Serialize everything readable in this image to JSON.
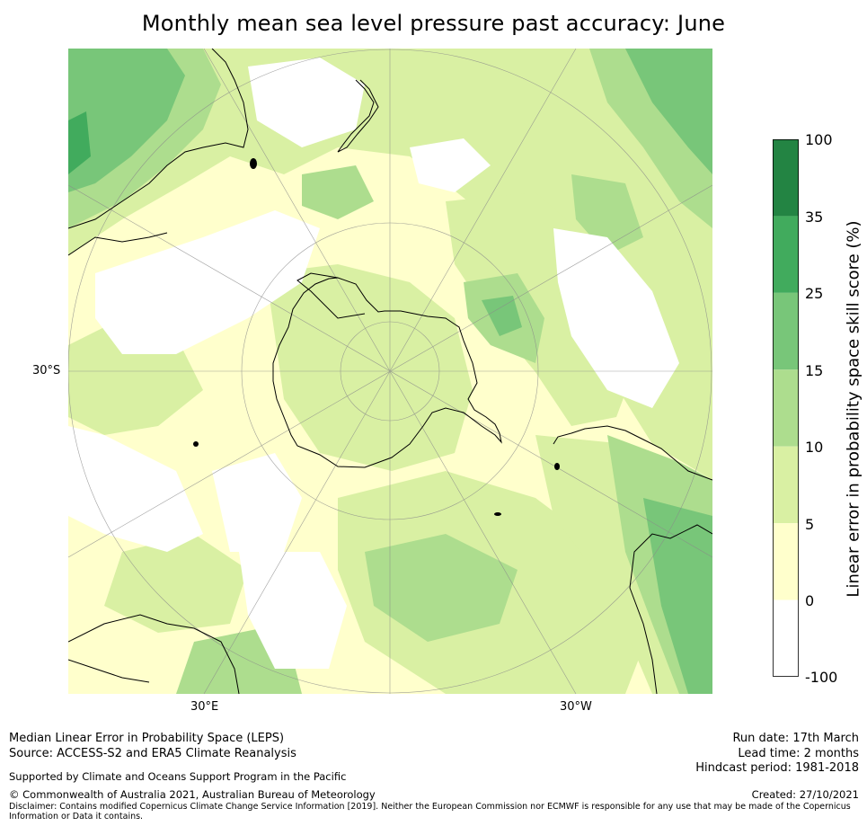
{
  "title": "Monthly mean sea level pressure past accuracy: June",
  "map": {
    "projection": "south polar stereographic",
    "graticule_labels": {
      "left": "30°S",
      "bottom_left": "30°E",
      "bottom_right": "30°W"
    },
    "land_masses": [
      "Antarctica",
      "Australia",
      "New Zealand",
      "South America",
      "Africa",
      "Madagascar"
    ]
  },
  "colorbar": {
    "label": "Linear error in probability space skill score (%)",
    "ticks": [
      "100",
      "35",
      "25",
      "15",
      "10",
      "5",
      "0",
      "-100"
    ],
    "bins": [
      {
        "range": "-100 to 0",
        "color": "#ffffff"
      },
      {
        "range": "0 to 5",
        "color": "#ffffcc"
      },
      {
        "range": "5 to 10",
        "color": "#d9f0a3"
      },
      {
        "range": "10 to 15",
        "color": "#addd8e"
      },
      {
        "range": "15 to 25",
        "color": "#78c679"
      },
      {
        "range": "25 to 35",
        "color": "#41ab5d"
      },
      {
        "range": "35 to 100",
        "color": "#238443"
      }
    ]
  },
  "footer": {
    "line1": "Median Linear Error in Probability Space (LEPS)",
    "line2": "Source: ACCESS-S2 and ERA5 Climate Reanalysis",
    "line3": "Supported by Climate and Oceans Support Program in the Pacific",
    "line4": "© Commonwealth of Australia 2021, Australian Bureau of Meteorology",
    "disclaimer": "Disclaimer: Contains modified Copernicus Climate Change Service Information [2019]. Neither the European Commission nor ECMWF is responsible for any use that may be made of the Copernicus Information or Data it contains.",
    "run_date": "Run date: 17th March",
    "lead_time": "Lead time: 2 months",
    "hindcast": "Hindcast period: 1981-2018",
    "created": "Created: 27/10/2021"
  }
}
